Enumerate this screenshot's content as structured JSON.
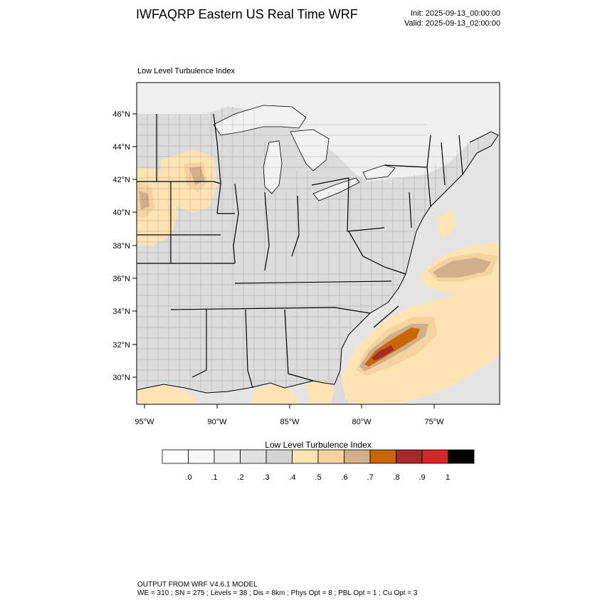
{
  "header": {
    "title": "IWFAQRP Eastern US Real Time WRF",
    "init": "Init: 2025-09-13_00:00:00",
    "valid": "Valid: 2025-09-13_02:00:00"
  },
  "map": {
    "subtitle": "Low Level Turbulence Index",
    "lat_labels": [
      "46°N",
      "44°N",
      "42°N",
      "40°N",
      "38°N",
      "36°N",
      "34°N",
      "32°N",
      "30°N"
    ],
    "lon_labels": [
      "95°W",
      "90°W",
      "85°W",
      "80°W",
      "75°W"
    ],
    "colors": {
      "land": "#dcdcdc",
      "land_light": "#ebebeb",
      "lake": "#f2f2f2",
      "ocean": "#e4e4e4",
      "cat_05": "#ffe3b3",
      "cat_06": "#f5d3a1",
      "cat_07": "#cfb08a",
      "cat_08": "#cc6600",
      "cat_09": "#a52a2a"
    }
  },
  "colorbar": {
    "title": "Low Level Turbulence Index",
    "labels": [
      ".0",
      ".1",
      ".2",
      ".3",
      ".4",
      ".5",
      ".6",
      ".7",
      ".8",
      ".9",
      "1"
    ],
    "colors": [
      "#ffffff",
      "#f7f7f7",
      "#eeeeee",
      "#e1e1e1",
      "#d3d3d3",
      "#ffe3b3",
      "#f5d3a1",
      "#cfb08a",
      "#cc6600",
      "#a52a2a",
      "#d62728",
      "#000000"
    ]
  },
  "footer": {
    "line1": "OUTPUT FROM WRF V4.6.1 MODEL",
    "line2": "WE = 310 ; SN = 275 ; Levels = 38 ; Dis = 8km ; Phys Opt = 8 ; PBL Opt = 1 ; Cu Opt = 3"
  }
}
